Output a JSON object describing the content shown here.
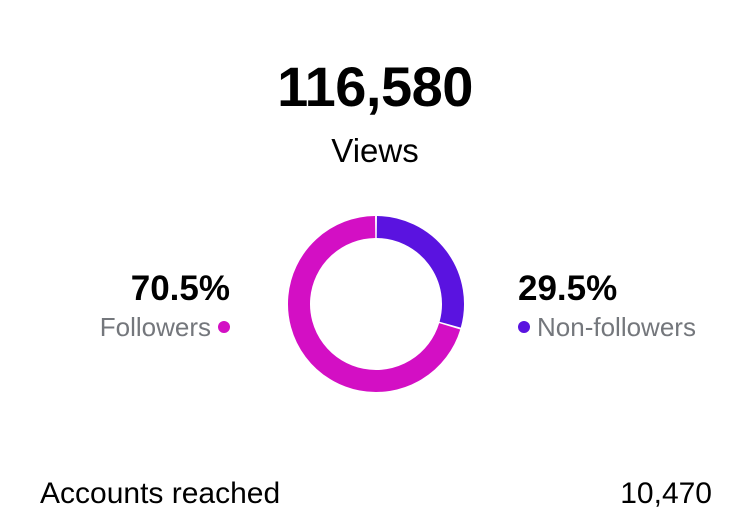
{
  "summary": {
    "total_value": "116,580",
    "total_label": "Views"
  },
  "chart_data": {
    "type": "pie",
    "style": "donut",
    "categories": [
      "Followers",
      "Non-followers"
    ],
    "values": [
      70.5,
      29.5
    ],
    "value_labels": [
      "70.5%",
      "29.5%"
    ],
    "colors": [
      "#d30fc4",
      "#5a13e0"
    ]
  },
  "legend": {
    "followers": {
      "pct": "70.5%",
      "label": "Followers",
      "color": "#d30fc4",
      "icon": "dot-icon"
    },
    "non_followers": {
      "pct": "29.5%",
      "label": "Non-followers",
      "color": "#5a13e0",
      "icon": "dot-icon"
    }
  },
  "metrics": {
    "accounts_reached": {
      "label": "Accounts reached",
      "value": "10,470"
    }
  }
}
